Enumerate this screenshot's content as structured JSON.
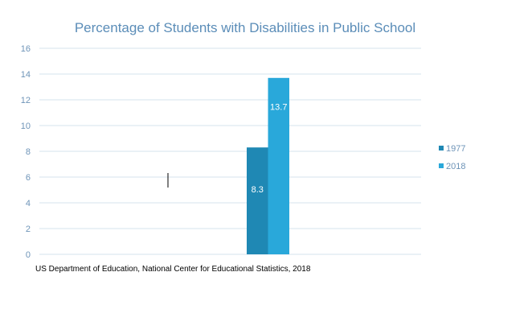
{
  "chart_data": {
    "type": "bar",
    "title": "Percentage of Students with Disabilities in Public School",
    "categories": [
      ""
    ],
    "series": [
      {
        "name": "1977",
        "values": [
          8.3
        ],
        "color": "#1F88B4"
      },
      {
        "name": "2018",
        "values": [
          13.7
        ],
        "color": "#29A8DA"
      }
    ],
    "data_labels": [
      "8.3",
      "13.7"
    ],
    "ylim": [
      0,
      16
    ],
    "yticks": [
      "0",
      "2",
      "4",
      "6",
      "8",
      "10",
      "12",
      "14",
      "16"
    ],
    "grid": true,
    "legend": "right",
    "source": "US Department of Education, National Center for Educational Statistics, 2018"
  }
}
